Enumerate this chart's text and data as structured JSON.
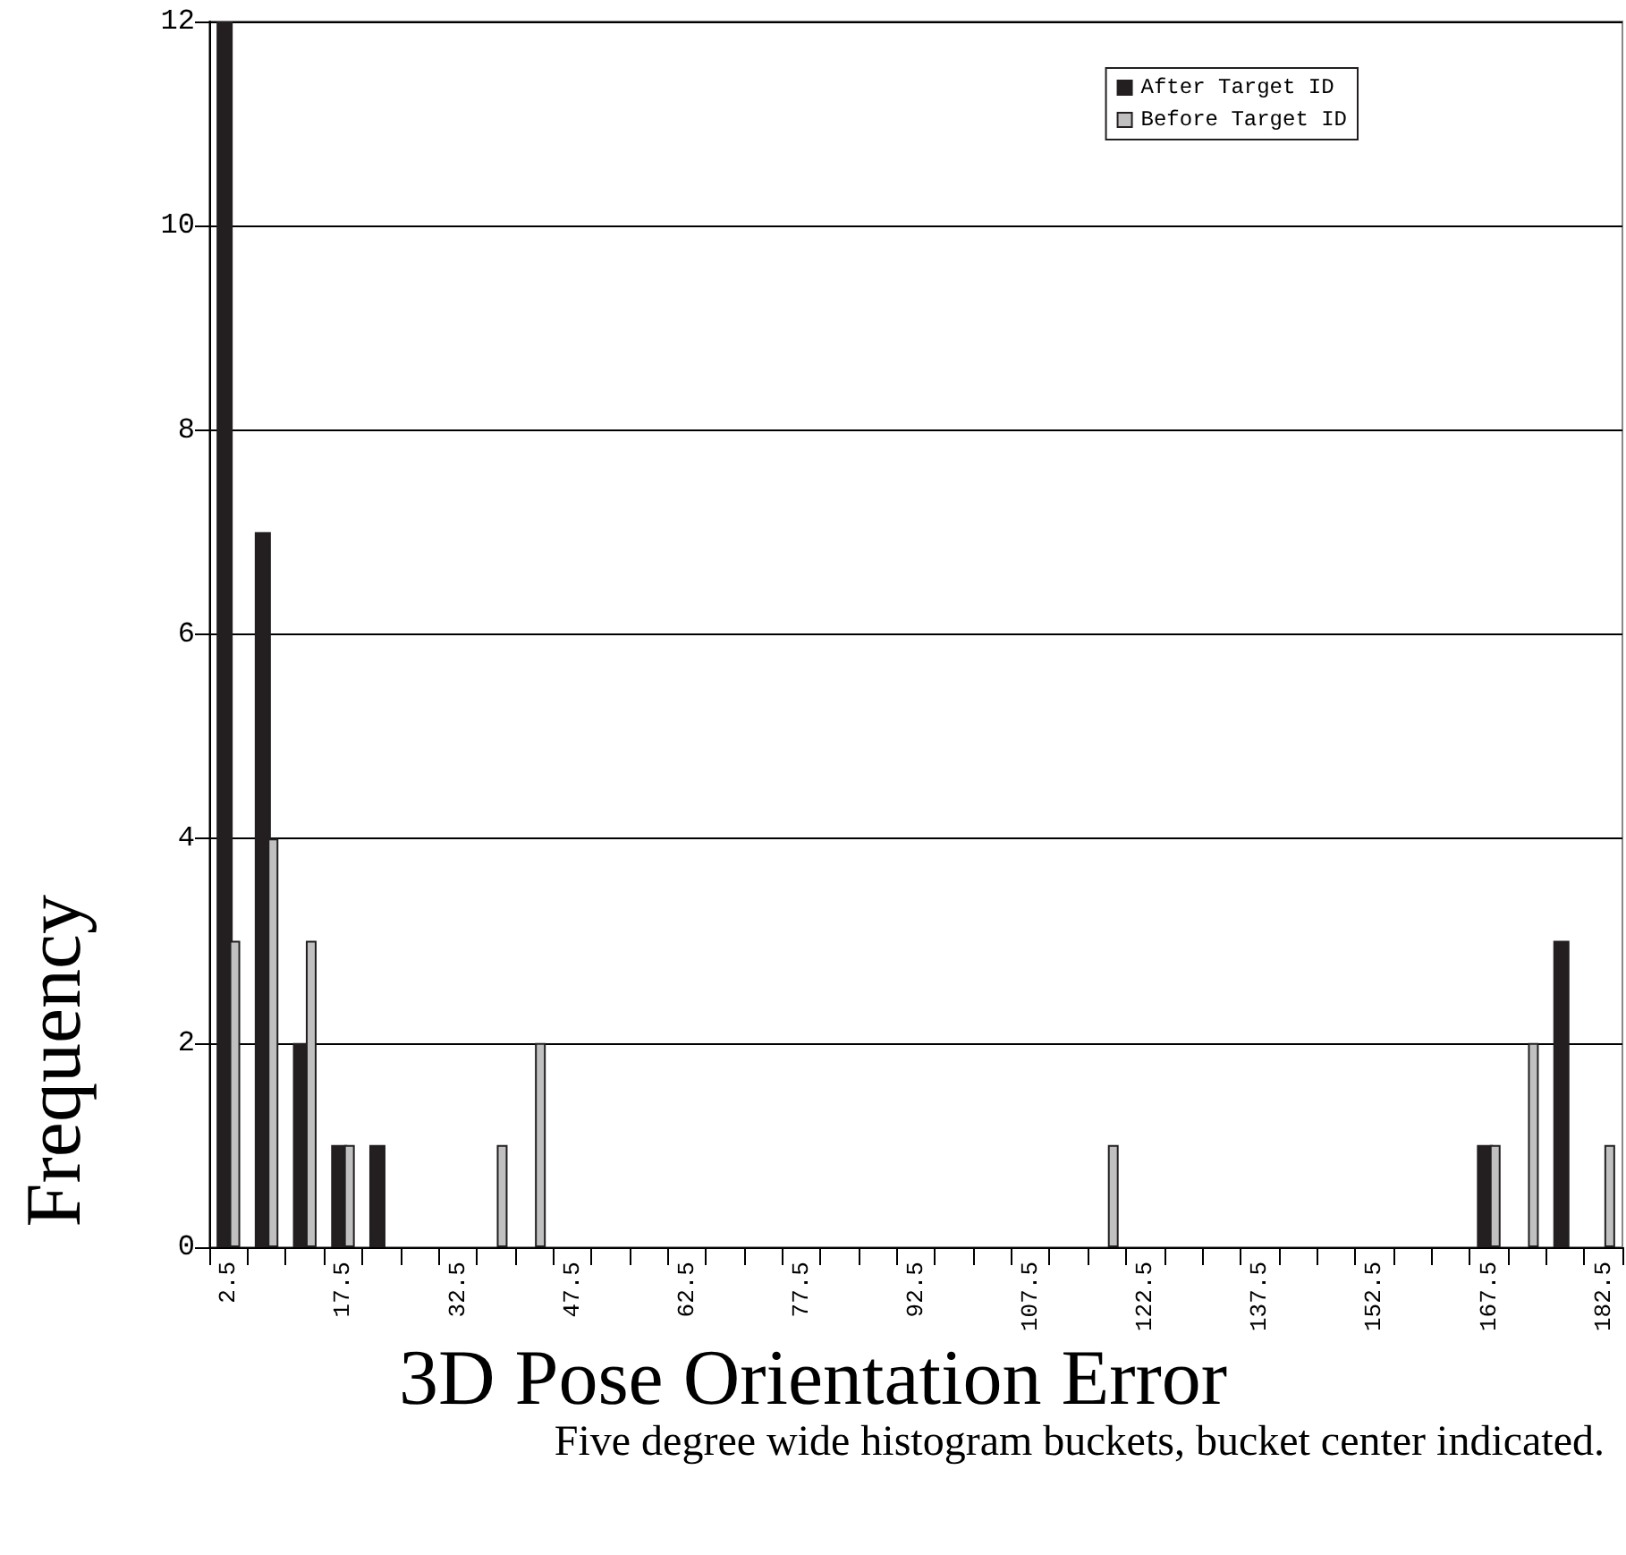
{
  "chart_data": {
    "type": "bar",
    "xlabel": "3D Pose Orientation Error",
    "ylabel": "Frequency",
    "annotations": [
      "Five degree wide histogram buckets, bucket center indicated."
    ],
    "categories": [
      "2.5",
      null,
      null,
      "17.5",
      null,
      null,
      "32.5",
      null,
      null,
      "47.5",
      null,
      null,
      "62.5",
      null,
      null,
      "77.5",
      null,
      null,
      "92.5",
      null,
      null,
      "107.5",
      null,
      null,
      "122.5",
      null,
      null,
      "137.5",
      null,
      null,
      "152.5",
      null,
      null,
      "167.5",
      null,
      null,
      "182.5"
    ],
    "series": [
      {
        "name": "After Target ID",
        "color": "#231f20",
        "values": [
          12,
          7,
          2,
          1,
          1,
          0,
          0,
          0,
          0,
          0,
          0,
          0,
          0,
          0,
          0,
          0,
          0,
          0,
          0,
          0,
          0,
          0,
          0,
          0,
          0,
          0,
          0,
          0,
          0,
          0,
          0,
          0,
          0,
          1,
          0,
          3,
          0
        ]
      },
      {
        "name": "Before Target ID",
        "color": "#c0c0c0",
        "values": [
          3,
          4,
          3,
          1,
          0,
          0,
          0,
          1,
          2,
          0,
          0,
          0,
          0,
          0,
          0,
          0,
          0,
          0,
          0,
          0,
          0,
          0,
          0,
          1,
          0,
          0,
          0,
          0,
          0,
          0,
          0,
          0,
          0,
          1,
          2,
          0,
          1
        ]
      }
    ],
    "ylim": [
      0,
      12
    ],
    "yticks": [
      0,
      2,
      4,
      6,
      8,
      10,
      12
    ],
    "grid": "y",
    "legend": "top right"
  }
}
